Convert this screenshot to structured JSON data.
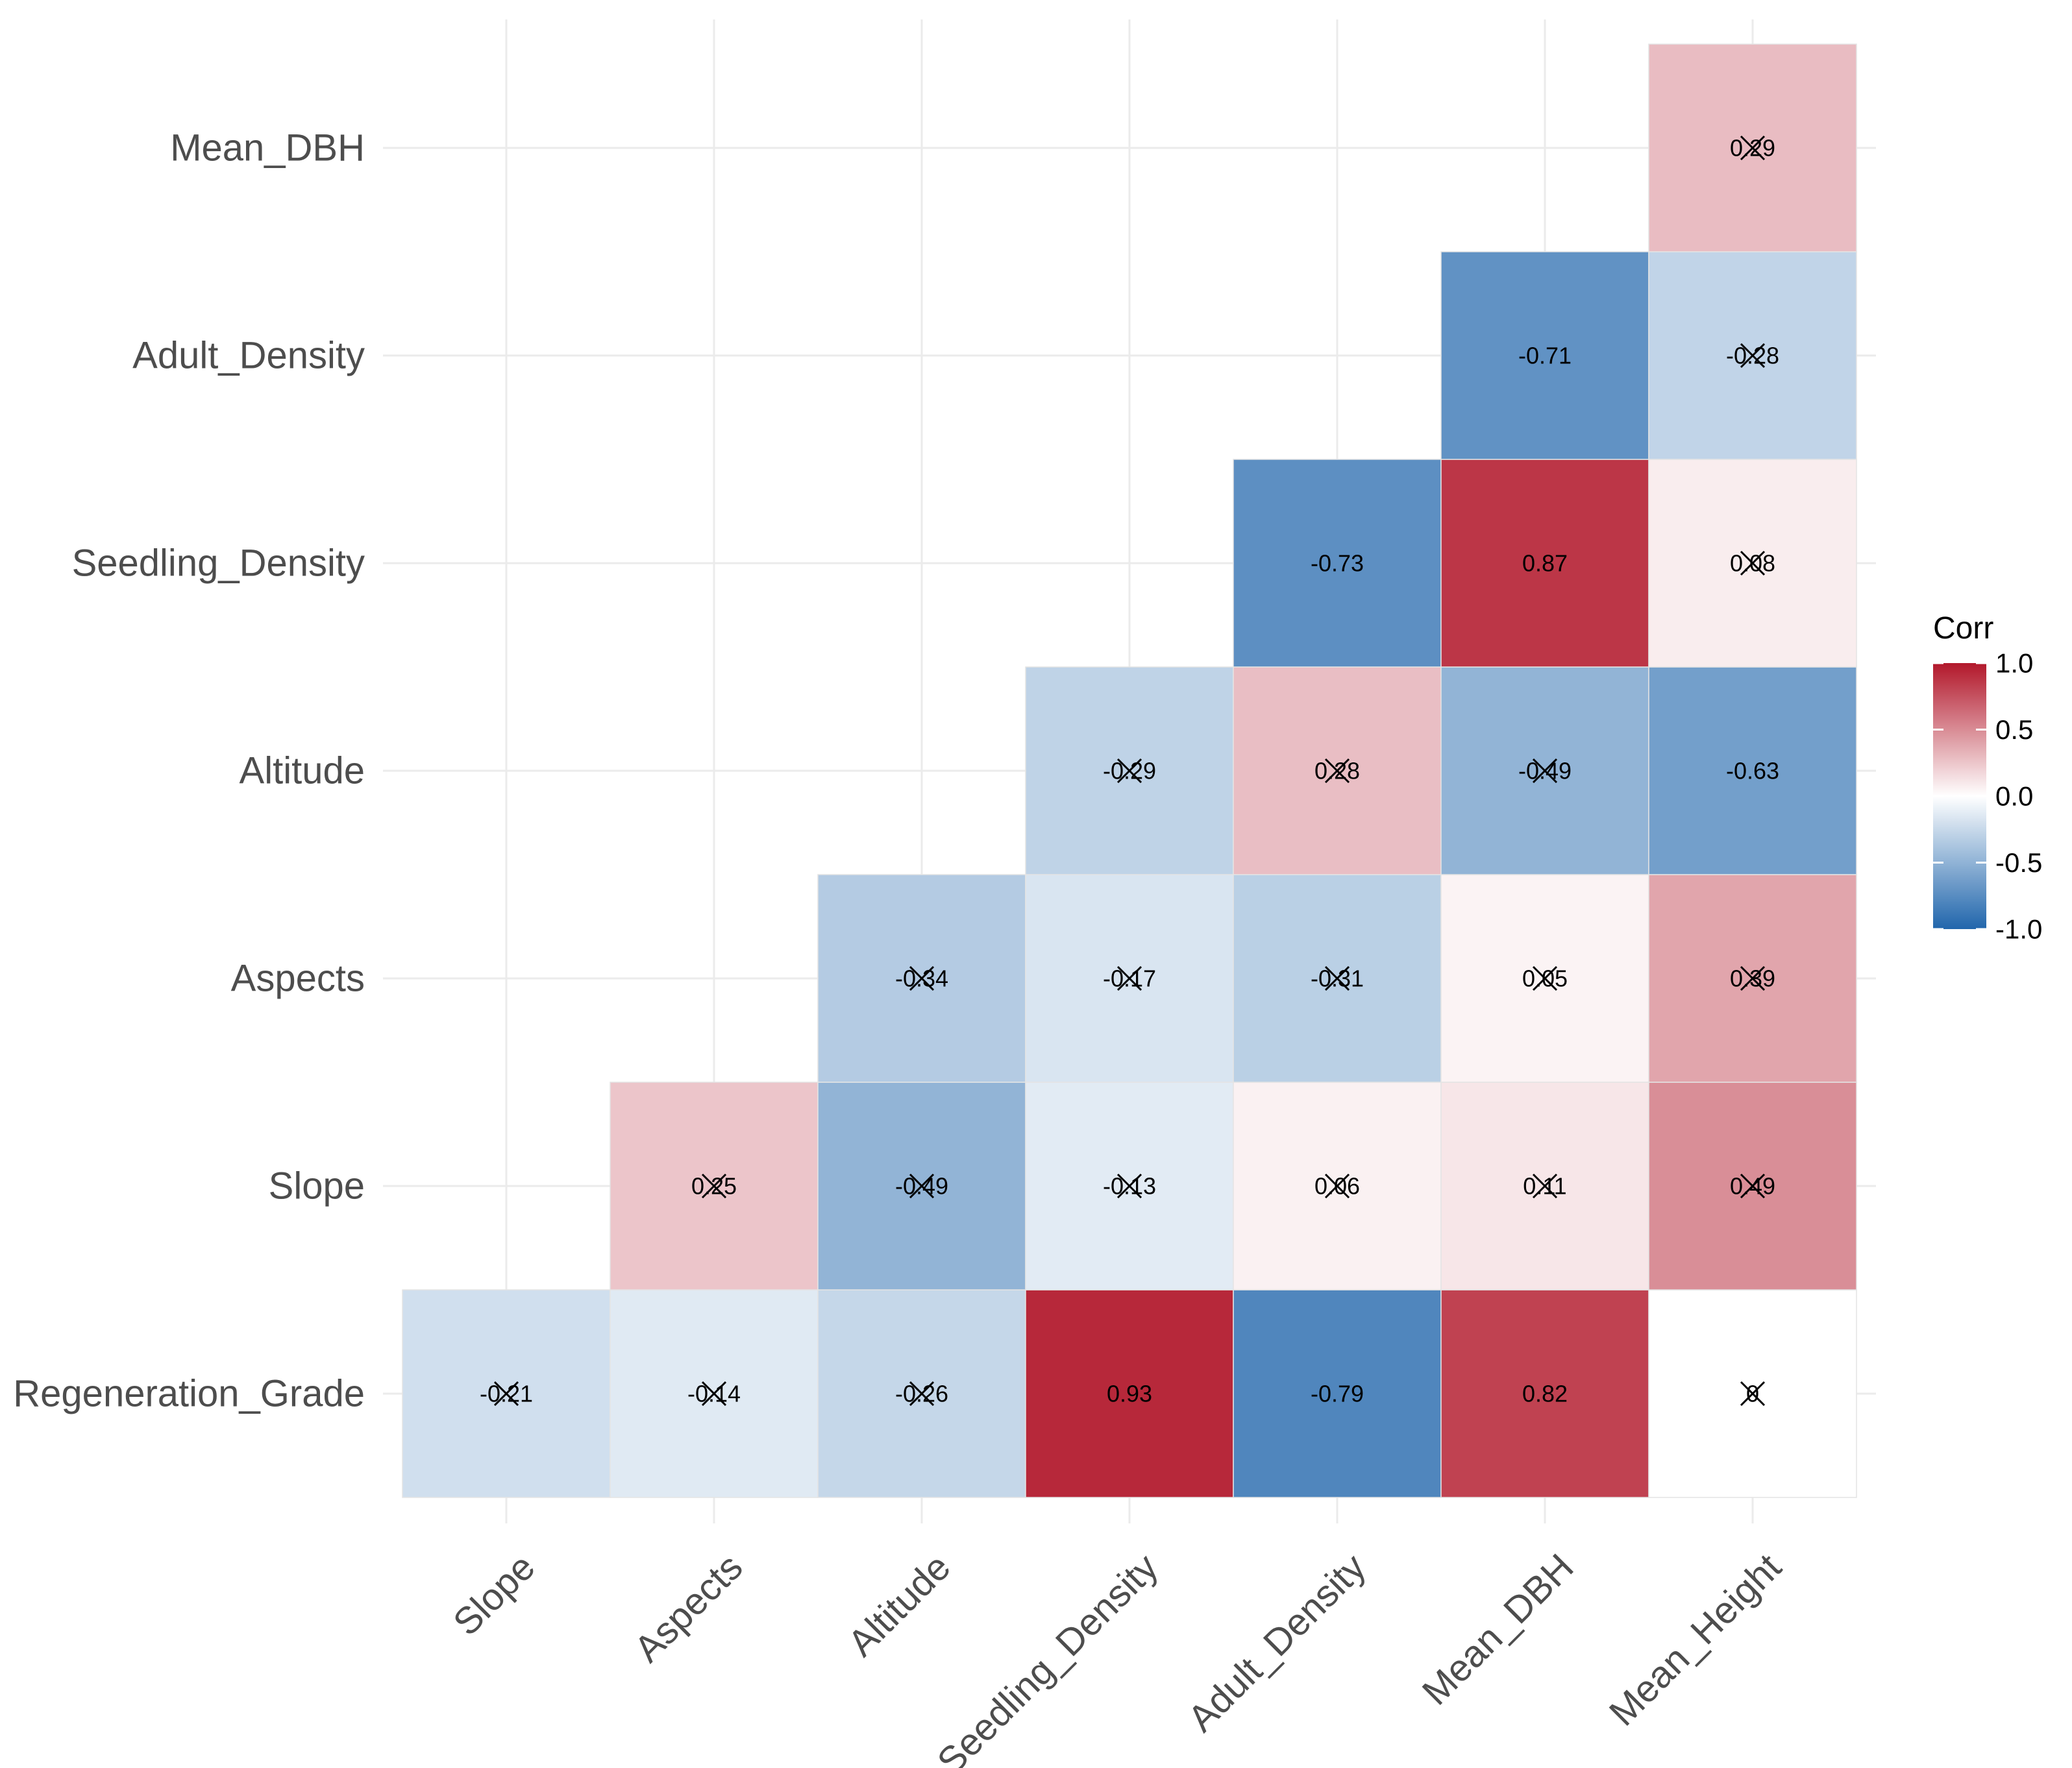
{
  "chart_data": {
    "type": "heatmap",
    "title": "",
    "xlabel": "",
    "ylabel": "",
    "x_categories": [
      "Slope",
      "Aspects",
      "Altitude",
      "Seedling_Density",
      "Adult_Density",
      "Mean_DBH",
      "Mean_Height"
    ],
    "y_categories": [
      "Regeneration_Grade",
      "Slope",
      "Aspects",
      "Altitude",
      "Seedling_Density",
      "Adult_Density",
      "Mean_DBH"
    ],
    "cells": [
      {
        "x": "Slope",
        "y": "Regeneration_Grade",
        "value": -0.21,
        "label": "-0.21",
        "insignificant": true
      },
      {
        "x": "Aspects",
        "y": "Regeneration_Grade",
        "value": -0.14,
        "label": "-0.14",
        "insignificant": true
      },
      {
        "x": "Altitude",
        "y": "Regeneration_Grade",
        "value": -0.26,
        "label": "-0.26",
        "insignificant": true
      },
      {
        "x": "Seedling_Density",
        "y": "Regeneration_Grade",
        "value": 0.93,
        "label": "0.93",
        "insignificant": false
      },
      {
        "x": "Adult_Density",
        "y": "Regeneration_Grade",
        "value": -0.79,
        "label": "-0.79",
        "insignificant": false
      },
      {
        "x": "Mean_DBH",
        "y": "Regeneration_Grade",
        "value": 0.82,
        "label": "0.82",
        "insignificant": false
      },
      {
        "x": "Mean_Height",
        "y": "Regeneration_Grade",
        "value": 0,
        "label": "0",
        "insignificant": true
      },
      {
        "x": "Aspects",
        "y": "Slope",
        "value": 0.25,
        "label": "0.25",
        "insignificant": true
      },
      {
        "x": "Altitude",
        "y": "Slope",
        "value": -0.49,
        "label": "-0.49",
        "insignificant": true
      },
      {
        "x": "Seedling_Density",
        "y": "Slope",
        "value": -0.13,
        "label": "-0.13",
        "insignificant": true
      },
      {
        "x": "Adult_Density",
        "y": "Slope",
        "value": 0.06,
        "label": "0.06",
        "insignificant": true
      },
      {
        "x": "Mean_DBH",
        "y": "Slope",
        "value": 0.11,
        "label": "0.11",
        "insignificant": true
      },
      {
        "x": "Mean_Height",
        "y": "Slope",
        "value": 0.49,
        "label": "0.49",
        "insignificant": true
      },
      {
        "x": "Altitude",
        "y": "Aspects",
        "value": -0.34,
        "label": "-0.34",
        "insignificant": true
      },
      {
        "x": "Seedling_Density",
        "y": "Aspects",
        "value": -0.17,
        "label": "-0.17",
        "insignificant": true
      },
      {
        "x": "Adult_Density",
        "y": "Aspects",
        "value": -0.31,
        "label": "-0.31",
        "insignificant": true
      },
      {
        "x": "Mean_DBH",
        "y": "Aspects",
        "value": 0.05,
        "label": "0.05",
        "insignificant": true
      },
      {
        "x": "Mean_Height",
        "y": "Aspects",
        "value": 0.39,
        "label": "0.39",
        "insignificant": true
      },
      {
        "x": "Seedling_Density",
        "y": "Altitude",
        "value": -0.29,
        "label": "-0.29",
        "insignificant": true
      },
      {
        "x": "Adult_Density",
        "y": "Altitude",
        "value": 0.28,
        "label": "0.28",
        "insignificant": true
      },
      {
        "x": "Mean_DBH",
        "y": "Altitude",
        "value": -0.49,
        "label": "-0.49",
        "insignificant": true
      },
      {
        "x": "Mean_Height",
        "y": "Altitude",
        "value": -0.63,
        "label": "-0.63",
        "insignificant": false
      },
      {
        "x": "Adult_Density",
        "y": "Seedling_Density",
        "value": -0.73,
        "label": "-0.73",
        "insignificant": false
      },
      {
        "x": "Mean_DBH",
        "y": "Seedling_Density",
        "value": 0.87,
        "label": "0.87",
        "insignificant": false
      },
      {
        "x": "Mean_Height",
        "y": "Seedling_Density",
        "value": 0.08,
        "label": "0.08",
        "insignificant": true
      },
      {
        "x": "Mean_DBH",
        "y": "Adult_Density",
        "value": -0.71,
        "label": "-0.71",
        "insignificant": false
      },
      {
        "x": "Mean_Height",
        "y": "Adult_Density",
        "value": -0.28,
        "label": "-0.28",
        "insignificant": true
      },
      {
        "x": "Mean_Height",
        "y": "Mean_DBH",
        "value": 0.29,
        "label": "0.29",
        "insignificant": true
      }
    ],
    "color_scale": {
      "low": "#2166ac",
      "mid": "#ffffff",
      "high": "#b2182b",
      "limits": [
        -1,
        1
      ]
    },
    "legend": {
      "title": "Corr",
      "ticks": [
        "1.0",
        "0.5",
        "0.0",
        "-0.5",
        "-1.0"
      ],
      "tick_values": [
        1,
        0.5,
        0,
        -0.5,
        -1
      ],
      "position": "right"
    },
    "grid": true
  }
}
